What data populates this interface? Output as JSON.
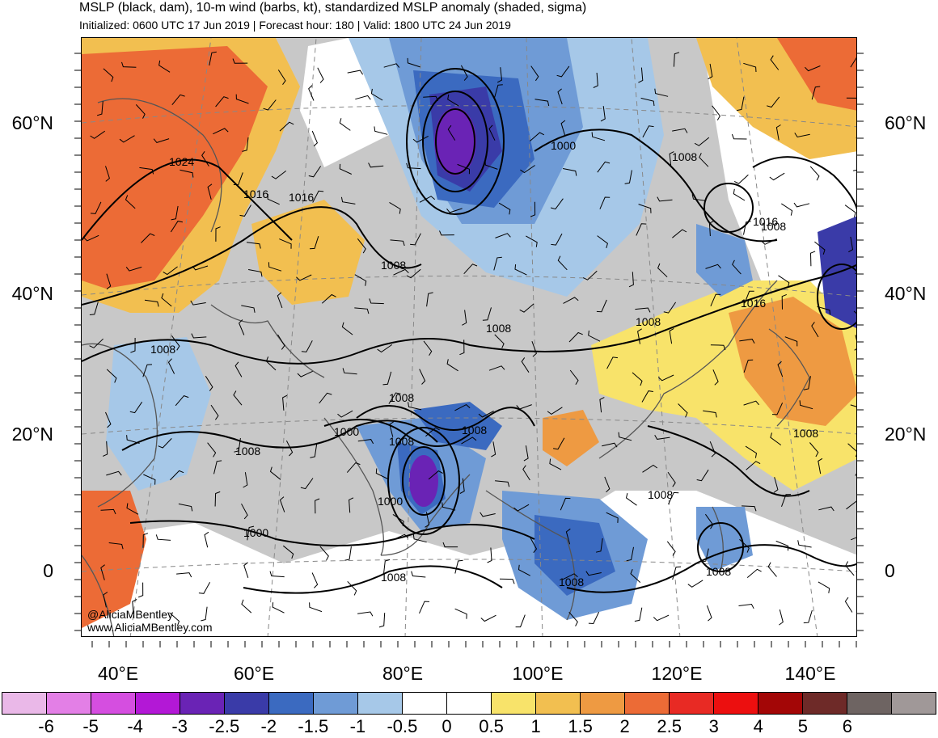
{
  "header": {
    "title": "MSLP (black, dam), 10-m wind (barbs, kt), standardized MSLP anomaly (shaded, sigma)",
    "subtitle": "Initialized: 0600 UTC 17 Jun 2019 | Forecast hour: 180 | Valid: 1800 UTC 24 Jun 2019"
  },
  "map": {
    "lat_labels": [
      "60°N",
      "40°N",
      "20°N",
      "0"
    ],
    "lon_labels": [
      "40°E",
      "60°E",
      "80°E",
      "100°E",
      "120°E",
      "140°E"
    ],
    "isobar_labels": [
      "1024",
      "1016",
      "1016",
      "1008",
      "1000",
      "1008",
      "1008",
      "1008",
      "1016",
      "1016",
      "1008",
      "1008",
      "1000",
      "1008",
      "1008",
      "1008",
      "1000",
      "1000",
      "1008",
      "1008",
      "1008",
      "1008",
      "1008",
      "1008"
    ]
  },
  "credit": {
    "handle": "@AliciaMBentley",
    "website": "www.AliciaMBentley.com"
  },
  "colorbar": {
    "colors": [
      "#eab8e8",
      "#e37fe6",
      "#d54ee0",
      "#b318d6",
      "#6a23b5",
      "#3a3ba8",
      "#3b6ac0",
      "#6f9bd6",
      "#a6c8e8",
      "#ffffff",
      "#ffffff",
      "#f8e36a",
      "#f2bf50",
      "#ee9a42",
      "#ec6b36",
      "#e82a24",
      "#ec0f0f",
      "#a30606",
      "#6e2a28",
      "#6e6462",
      "#a09898"
    ],
    "labels": [
      "-6",
      "-5",
      "-4",
      "-3",
      "-2.5",
      "-2",
      "-1.5",
      "-1",
      "-0.5",
      "0",
      "0.5",
      "1",
      "1.5",
      "2",
      "2.5",
      "3",
      "4",
      "5",
      "6"
    ]
  }
}
